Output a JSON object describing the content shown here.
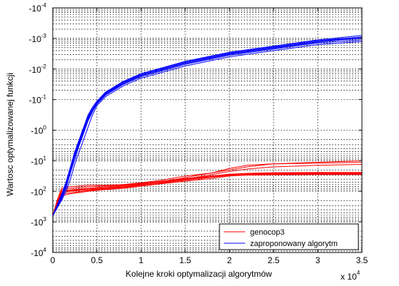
{
  "chart_data": {
    "type": "line",
    "xlabel": "Kolejne kroki optymalizacji algorytmów",
    "ylabel": "Wartosc optymalizowanej funkcji",
    "x_multiplier": {
      "base": "x 10",
      "exp": "4"
    },
    "xlim": [
      0,
      3.5
    ],
    "x_ticks": [
      0,
      0.5,
      1,
      1.5,
      2,
      2.5,
      3,
      3.5
    ],
    "x_tick_labels": [
      "0",
      "0.5",
      "1",
      "1.5",
      "2",
      "2.5",
      "3",
      "3.5"
    ],
    "ylim": [
      -4,
      4
    ],
    "y_ticks": [
      -4,
      -3,
      -2,
      -1,
      0,
      1,
      2,
      3,
      4
    ],
    "y_tick_labels": [
      {
        "base": "-10",
        "exp": "-4"
      },
      {
        "base": "-10",
        "exp": "-3"
      },
      {
        "base": "-10",
        "exp": "-2"
      },
      {
        "base": "-10",
        "exp": "-1"
      },
      {
        "base": "-10",
        "exp": "0"
      },
      {
        "base": "-10",
        "exp": "1"
      },
      {
        "base": "-10",
        "exp": "2"
      },
      {
        "base": "-10",
        "exp": "3"
      },
      {
        "base": "-10",
        "exp": "4"
      }
    ],
    "grid": true,
    "legend_position": "bottom-right",
    "series": [
      {
        "name": "genocop3",
        "color": "#ff0000",
        "x": [
          0,
          0.05,
          0.1,
          0.2,
          0.4,
          0.6,
          0.8,
          1.0,
          1.2,
          1.5,
          1.8,
          2.0,
          2.2,
          2.5,
          3.0,
          3.5
        ],
        "runs": [
          [
            2.8,
            2.4,
            2.0,
            1.95,
            1.9,
            1.85,
            1.8,
            1.75,
            1.7,
            1.55,
            1.4,
            1.25,
            1.15,
            1.1,
            1.08,
            1.05
          ],
          [
            2.8,
            2.3,
            1.95,
            1.9,
            1.85,
            1.82,
            1.78,
            1.72,
            1.65,
            1.5,
            1.4,
            1.3,
            1.2,
            1.1,
            1.05,
            1.0
          ],
          [
            2.8,
            2.4,
            2.05,
            2.0,
            1.95,
            1.9,
            1.85,
            1.78,
            1.7,
            1.6,
            1.5,
            1.45,
            1.42,
            1.4,
            1.4,
            1.4
          ],
          [
            2.8,
            2.35,
            2.0,
            1.97,
            1.92,
            1.88,
            1.82,
            1.76,
            1.7,
            1.62,
            1.52,
            1.46,
            1.43,
            1.42,
            1.42,
            1.42
          ],
          [
            2.8,
            2.45,
            2.1,
            2.05,
            1.98,
            1.92,
            1.88,
            1.8,
            1.74,
            1.64,
            1.54,
            1.48,
            1.45,
            1.44,
            1.44,
            1.44
          ],
          [
            2.8,
            2.3,
            1.9,
            1.85,
            1.8,
            1.8,
            1.78,
            1.74,
            1.68,
            1.58,
            1.5,
            1.44,
            1.41,
            1.39,
            1.38,
            1.38
          ],
          [
            2.8,
            2.5,
            2.15,
            2.08,
            2.0,
            1.94,
            1.9,
            1.83,
            1.76,
            1.67,
            1.58,
            1.5,
            1.47,
            1.46,
            1.45,
            1.45
          ],
          [
            2.8,
            2.4,
            2.0,
            1.98,
            1.95,
            1.9,
            1.86,
            1.8,
            1.73,
            1.6,
            1.45,
            1.35,
            1.27,
            1.2,
            1.15,
            1.12
          ]
        ]
      },
      {
        "name": "zaproponowany algorytm",
        "color": "#0000ff",
        "x": [
          0,
          0.05,
          0.1,
          0.15,
          0.2,
          0.25,
          0.3,
          0.35,
          0.4,
          0.45,
          0.5,
          0.6,
          0.8,
          1.0,
          1.5,
          2.0,
          2.5,
          3.0,
          3.5
        ],
        "runs": [
          [
            2.8,
            2.5,
            2.2,
            1.8,
            1.3,
            0.8,
            0.4,
            0.0,
            -0.4,
            -0.7,
            -0.9,
            -1.2,
            -1.55,
            -1.8,
            -2.2,
            -2.5,
            -2.7,
            -2.9,
            -3.05
          ],
          [
            2.8,
            2.5,
            2.25,
            1.9,
            1.4,
            0.95,
            0.5,
            0.1,
            -0.3,
            -0.6,
            -0.85,
            -1.15,
            -1.5,
            -1.75,
            -2.15,
            -2.45,
            -2.65,
            -2.85,
            -2.95
          ],
          [
            2.8,
            2.45,
            2.1,
            1.7,
            1.2,
            0.7,
            0.3,
            -0.1,
            -0.5,
            -0.75,
            -0.95,
            -1.25,
            -1.6,
            -1.85,
            -2.25,
            -2.55,
            -2.75,
            -2.95,
            -3.1
          ],
          [
            2.8,
            2.55,
            2.3,
            2.0,
            1.6,
            1.1,
            0.7,
            0.3,
            -0.1,
            -0.5,
            -0.8,
            -1.1,
            -1.45,
            -1.7,
            -2.1,
            -2.4,
            -2.6,
            -2.8,
            -2.9
          ],
          [
            2.8,
            2.5,
            2.2,
            1.85,
            1.35,
            0.85,
            0.45,
            0.05,
            -0.35,
            -0.65,
            -0.9,
            -1.2,
            -1.55,
            -1.8,
            -2.2,
            -2.5,
            -2.7,
            -2.9,
            -3.0
          ],
          [
            2.8,
            2.45,
            2.15,
            1.75,
            1.25,
            0.75,
            0.35,
            -0.05,
            -0.45,
            -0.7,
            -0.92,
            -1.22,
            -1.58,
            -1.83,
            -2.23,
            -2.53,
            -2.73,
            -2.93,
            -3.05
          ],
          [
            2.8,
            2.5,
            2.2,
            1.8,
            1.3,
            0.85,
            0.45,
            0.05,
            -0.35,
            -0.65,
            -0.88,
            -1.18,
            -1.52,
            -1.78,
            -2.18,
            -2.48,
            -2.68,
            -2.88,
            -3.02
          ]
        ]
      }
    ]
  }
}
